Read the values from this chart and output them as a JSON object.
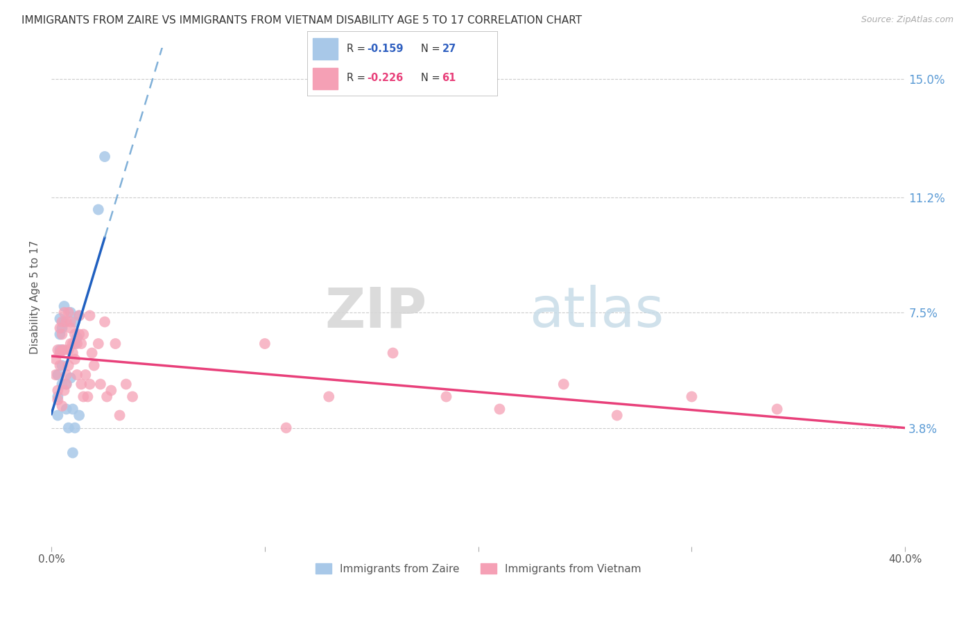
{
  "title": "IMMIGRANTS FROM ZAIRE VS IMMIGRANTS FROM VIETNAM DISABILITY AGE 5 TO 17 CORRELATION CHART",
  "source": "Source: ZipAtlas.com",
  "ylabel": "Disability Age 5 to 17",
  "ytick_labels": [
    "3.8%",
    "7.5%",
    "11.2%",
    "15.0%"
  ],
  "ytick_values": [
    0.038,
    0.075,
    0.112,
    0.15
  ],
  "xlim": [
    0.0,
    0.4
  ],
  "ylim": [
    0.0,
    0.16
  ],
  "color_zaire": "#a8c8e8",
  "color_vietnam": "#f5a0b5",
  "color_zaire_line": "#2060c0",
  "color_vietnam_line": "#e8407a",
  "color_zaire_dashed": "#80b0d8",
  "watermark_zip": "ZIP",
  "watermark_atlas": "atlas",
  "zaire_x": [
    0.003,
    0.003,
    0.003,
    0.004,
    0.004,
    0.004,
    0.005,
    0.005,
    0.005,
    0.005,
    0.006,
    0.006,
    0.007,
    0.007,
    0.008,
    0.009,
    0.009,
    0.01,
    0.01,
    0.011,
    0.011,
    0.011,
    0.012,
    0.013,
    0.013,
    0.022,
    0.025
  ],
  "zaire_y": [
    0.055,
    0.048,
    0.042,
    0.068,
    0.073,
    0.063,
    0.058,
    0.07,
    0.063,
    0.052,
    0.077,
    0.072,
    0.044,
    0.052,
    0.038,
    0.054,
    0.075,
    0.044,
    0.03,
    0.072,
    0.065,
    0.038,
    0.067,
    0.074,
    0.042,
    0.108,
    0.125
  ],
  "vietnam_x": [
    0.002,
    0.002,
    0.003,
    0.003,
    0.003,
    0.004,
    0.004,
    0.004,
    0.005,
    0.005,
    0.005,
    0.005,
    0.006,
    0.006,
    0.006,
    0.007,
    0.007,
    0.007,
    0.008,
    0.008,
    0.008,
    0.009,
    0.009,
    0.009,
    0.01,
    0.01,
    0.011,
    0.011,
    0.012,
    0.012,
    0.013,
    0.013,
    0.014,
    0.014,
    0.015,
    0.015,
    0.016,
    0.017,
    0.018,
    0.018,
    0.019,
    0.02,
    0.022,
    0.023,
    0.025,
    0.026,
    0.028,
    0.03,
    0.032,
    0.035,
    0.038,
    0.1,
    0.11,
    0.13,
    0.16,
    0.185,
    0.21,
    0.24,
    0.265,
    0.3,
    0.34
  ],
  "vietnam_y": [
    0.055,
    0.06,
    0.047,
    0.063,
    0.05,
    0.07,
    0.062,
    0.058,
    0.072,
    0.068,
    0.045,
    0.063,
    0.05,
    0.075,
    0.063,
    0.052,
    0.072,
    0.055,
    0.063,
    0.075,
    0.058,
    0.065,
    0.07,
    0.072,
    0.062,
    0.065,
    0.06,
    0.068,
    0.055,
    0.065,
    0.068,
    0.074,
    0.052,
    0.065,
    0.048,
    0.068,
    0.055,
    0.048,
    0.052,
    0.074,
    0.062,
    0.058,
    0.065,
    0.052,
    0.072,
    0.048,
    0.05,
    0.065,
    0.042,
    0.052,
    0.048,
    0.065,
    0.038,
    0.048,
    0.062,
    0.048,
    0.044,
    0.052,
    0.042,
    0.048,
    0.044
  ],
  "background_color": "#ffffff",
  "grid_color": "#cccccc",
  "zaire_line_x_solid_end": 0.025,
  "zaire_line_x_dashed_end": 0.4
}
